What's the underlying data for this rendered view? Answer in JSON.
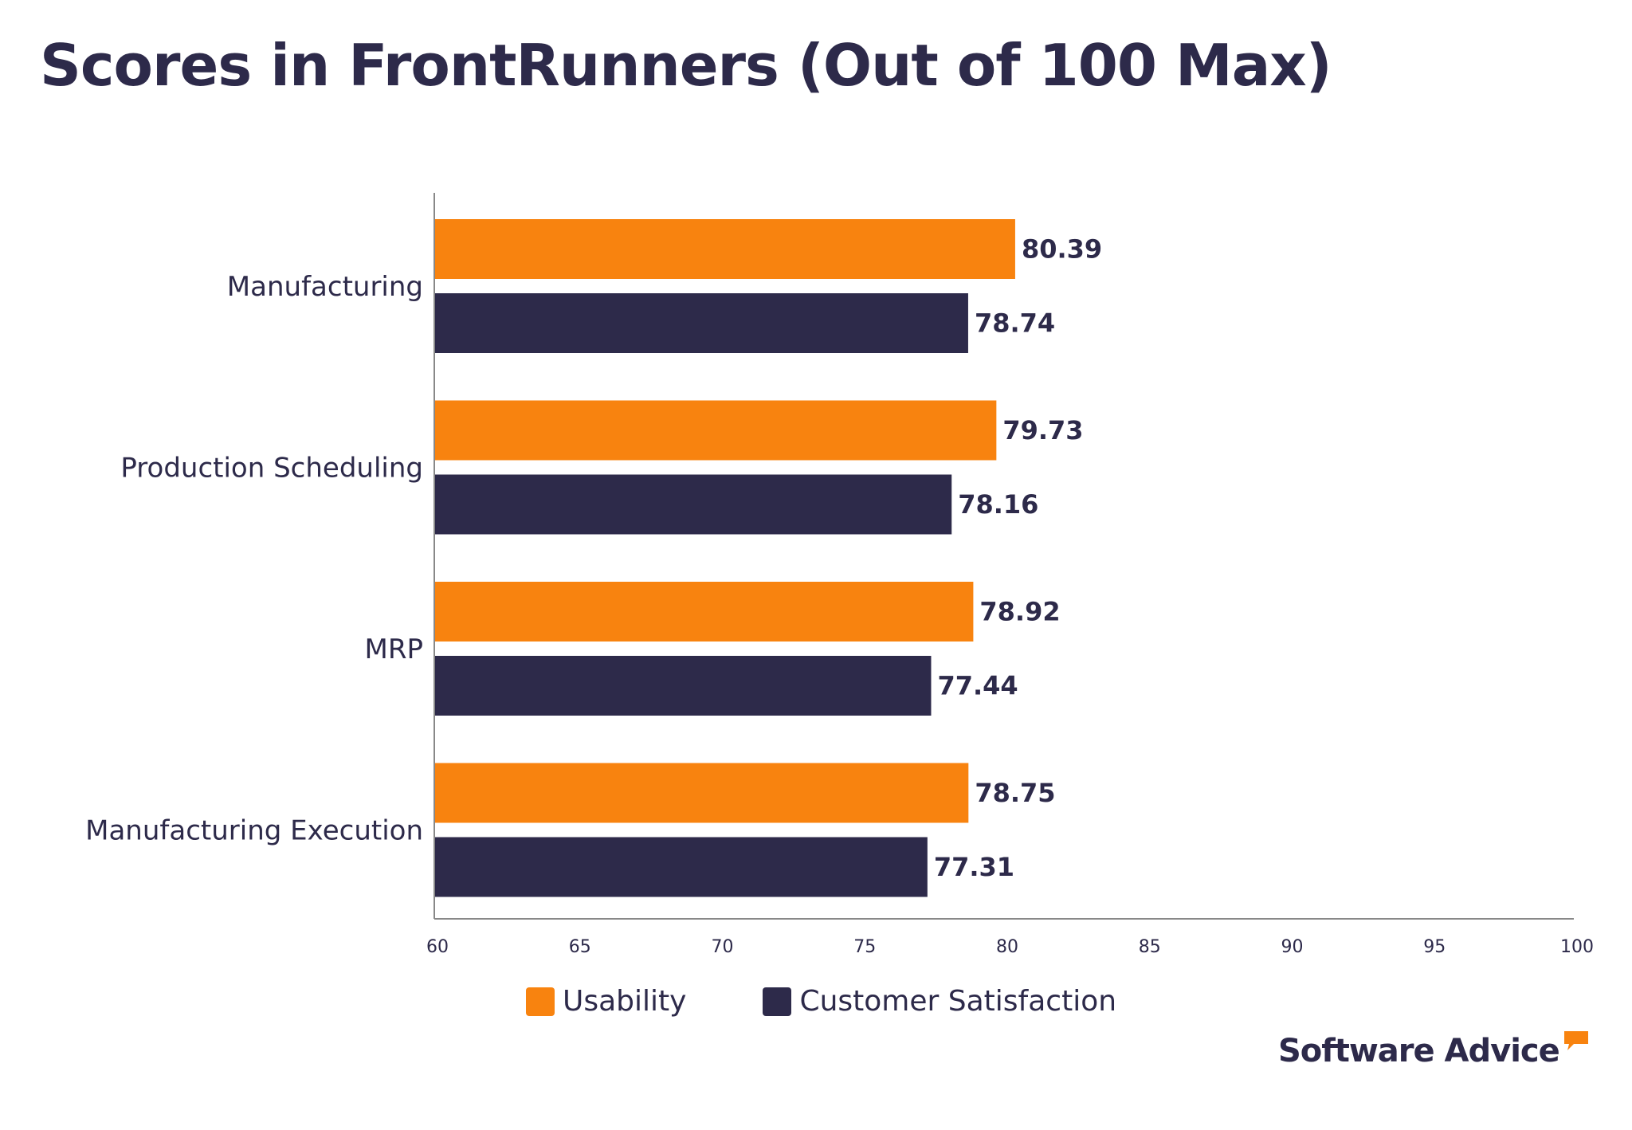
{
  "chart_data": {
    "type": "bar",
    "orientation": "horizontal",
    "title": "Scores in FrontRunners (Out of 100 Max)",
    "categories": [
      "Manufacturing",
      "Production Scheduling",
      "MRP",
      "Manufacturing Execution"
    ],
    "series": [
      {
        "name": "Usability",
        "color": "#f8830f",
        "values": [
          80.39,
          79.73,
          78.92,
          78.75
        ]
      },
      {
        "name": "Customer Satisfaction",
        "color": "#2d2a4a",
        "values": [
          78.74,
          78.16,
          77.44,
          77.31
        ]
      }
    ],
    "xlim": [
      60,
      100
    ],
    "xticks": [
      60,
      65,
      70,
      75,
      80,
      85,
      90,
      95,
      100
    ],
    "xlabel": "",
    "ylabel": "",
    "grid": false,
    "legend_position": "bottom"
  },
  "branding": {
    "logo_text": "Software Advice",
    "logo_icon": "speech-bubble-icon"
  }
}
